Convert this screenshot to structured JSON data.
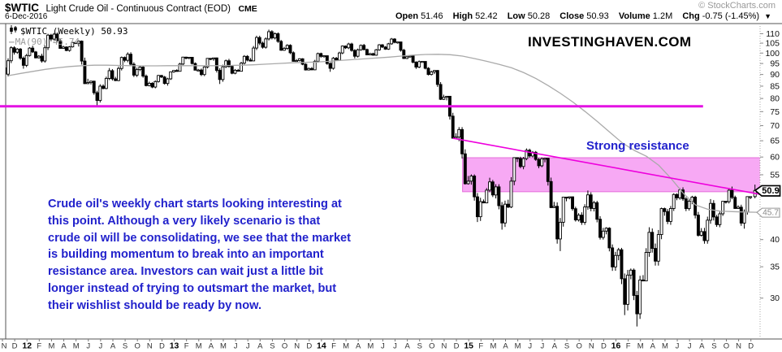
{
  "header": {
    "symbol": "$WTIC",
    "title": "Light Crude Oil - Continuous Contract (EOD)",
    "exchange": "CME",
    "copyright": "© StockCharts.com",
    "date": "6-Dec-2016",
    "quote": {
      "open_label": "Open",
      "open": "51.46",
      "high_label": "High",
      "high": "52.42",
      "low_label": "Low",
      "low": "50.28",
      "close_label": "Close",
      "close": "50.93",
      "volume_label": "Volume",
      "volume": "1.2M",
      "chg_label": "Chg",
      "chg": "-0.75 (-1.45%)",
      "chg_direction_icon": "▼"
    }
  },
  "legend": {
    "main": "$WTIC (Weekly) 50.93",
    "ma_prefix": "—",
    "ma": "MA(90) 45.74",
    "ma_color": "#aaaaaa"
  },
  "watermark": "INVESTINGHAVEN.COM",
  "strong_resistance_label": "Strong resistance",
  "annotation_paragraph": {
    "color": "#2222cc",
    "lines": [
      "Crude oil's weekly chart starts looking interesting at",
      "this point. Although a very likely scenario is that",
      "crude oil will be consolidating, we see that the market",
      "is building momentum to break into an important",
      "resistance area. Investors can wait just a little bit",
      "longer instead of trying to outsmart the market, but",
      "their wishlist should be ready by now."
    ]
  },
  "price_bubbles": {
    "last": {
      "text": "50.9",
      "value": 50.93,
      "style": "black"
    },
    "ma": {
      "text": "45.7",
      "value": 45.74,
      "style": "gray"
    }
  },
  "chart_data": {
    "type": "candlestick",
    "symbol": "$WTIC",
    "period": "Weekly",
    "date_range": "Nov 2011 - Dec 2016",
    "y_scale": "log",
    "ylim": [
      26,
      113
    ],
    "grid": "off",
    "y_ticks": [
      110,
      105,
      100,
      95,
      90,
      85,
      80,
      75,
      70,
      65,
      60,
      55,
      50,
      45,
      40,
      35,
      30
    ],
    "y_tick_hidden_by_bubbles": [
      50,
      45
    ],
    "x_labels": [
      "N",
      "D",
      "12",
      "F",
      "M",
      "A",
      "M",
      "J",
      "J",
      "A",
      "S",
      "O",
      "N",
      "D",
      "13",
      "F",
      "M",
      "A",
      "M",
      "J",
      "J",
      "A",
      "S",
      "O",
      "N",
      "D",
      "14",
      "F",
      "M",
      "A",
      "M",
      "J",
      "J",
      "A",
      "S",
      "O",
      "N",
      "D",
      "15",
      "F",
      "M",
      "A",
      "M",
      "J",
      "J",
      "A",
      "S",
      "O",
      "N",
      "D",
      "16",
      "F",
      "M",
      "A",
      "M",
      "J",
      "J",
      "A",
      "S",
      "O",
      "N",
      "D"
    ],
    "monthly_ohlc": [
      [
        93.0,
        103.4,
        89.2,
        100.4
      ],
      [
        100.4,
        102.5,
        92.6,
        98.8
      ],
      [
        98.8,
        103.7,
        97.4,
        98.5
      ],
      [
        98.5,
        109.9,
        95.4,
        107.1
      ],
      [
        107.1,
        110.6,
        102.1,
        103.0
      ],
      [
        103.0,
        105.5,
        100.7,
        104.9
      ],
      [
        104.9,
        106.4,
        85.9,
        86.5
      ],
      [
        86.5,
        87.3,
        77.3,
        85.0
      ],
      [
        85.0,
        92.9,
        83.7,
        88.1
      ],
      [
        88.1,
        98.3,
        87.1,
        96.5
      ],
      [
        96.5,
        100.4,
        88.9,
        92.2
      ],
      [
        92.2,
        93.7,
        84.9,
        86.2
      ],
      [
        86.2,
        89.8,
        84.1,
        88.9
      ],
      [
        88.9,
        91.0,
        85.2,
        91.8
      ],
      [
        91.8,
        98.2,
        91.3,
        97.5
      ],
      [
        97.5,
        98.1,
        91.9,
        92.0
      ],
      [
        92.0,
        97.5,
        89.3,
        97.2
      ],
      [
        97.2,
        97.8,
        85.9,
        93.5
      ],
      [
        93.5,
        97.2,
        90.1,
        91.9
      ],
      [
        91.9,
        99.0,
        91.3,
        96.6
      ],
      [
        96.6,
        108.9,
        96.1,
        105.0
      ],
      [
        105.0,
        112.2,
        102.2,
        107.7
      ],
      [
        107.7,
        110.7,
        101.1,
        102.3
      ],
      [
        102.3,
        104.4,
        95.9,
        96.4
      ],
      [
        96.4,
        97.5,
        91.8,
        92.7
      ],
      [
        92.7,
        100.2,
        91.9,
        98.4
      ],
      [
        98.4,
        98.8,
        91.2,
        97.5
      ],
      [
        97.5,
        103.8,
        96.3,
        102.6
      ],
      [
        102.6,
        105.2,
        97.4,
        101.6
      ],
      [
        101.6,
        104.6,
        98.9,
        99.7
      ],
      [
        99.7,
        104.5,
        98.7,
        103.0
      ],
      [
        103.0,
        107.7,
        101.6,
        105.4
      ],
      [
        105.4,
        105.7,
        97.1,
        98.2
      ],
      [
        98.2,
        98.7,
        92.5,
        95.9
      ],
      [
        95.9,
        96.0,
        89.6,
        91.2
      ],
      [
        91.2,
        92.0,
        79.4,
        80.5
      ],
      [
        80.5,
        81.0,
        65.7,
        66.2
      ],
      [
        66.2,
        69.5,
        52.4,
        53.3
      ],
      [
        53.3,
        55.1,
        43.6,
        48.2
      ],
      [
        48.2,
        54.2,
        47.8,
        49.8
      ],
      [
        49.8,
        52.5,
        42.0,
        47.6
      ],
      [
        47.6,
        59.9,
        46.7,
        59.6
      ],
      [
        59.6,
        62.6,
        56.5,
        60.3
      ],
      [
        60.3,
        61.8,
        56.8,
        59.5
      ],
      [
        59.5,
        59.7,
        46.7,
        47.1
      ],
      [
        47.1,
        49.3,
        37.8,
        49.2
      ],
      [
        49.2,
        49.4,
        43.7,
        45.1
      ],
      [
        45.1,
        50.9,
        43.0,
        46.6
      ],
      [
        46.6,
        48.4,
        40.0,
        41.7
      ],
      [
        41.7,
        42.5,
        34.3,
        37.0
      ],
      [
        37.0,
        38.4,
        27.6,
        33.6
      ],
      [
        33.6,
        34.7,
        26.1,
        32.8
      ],
      [
        32.8,
        42.5,
        32.6,
        38.3
      ],
      [
        38.3,
        46.8,
        35.2,
        45.9
      ],
      [
        45.9,
        50.2,
        43.0,
        49.1
      ],
      [
        49.1,
        51.7,
        46.0,
        48.3
      ],
      [
        48.3,
        49.6,
        40.6,
        41.6
      ],
      [
        41.6,
        48.8,
        39.2,
        44.7
      ],
      [
        44.7,
        48.3,
        42.5,
        48.2
      ],
      [
        48.2,
        51.9,
        46.5,
        46.9
      ],
      [
        46.9,
        49.4,
        42.2,
        49.4
      ],
      [
        49.4,
        52.4,
        49.0,
        50.93
      ]
    ],
    "ma90": [
      89.5,
      90.5,
      91.4,
      92.3,
      93.0,
      93.6,
      94.0,
      94.2,
      94.2,
      94.1,
      94.0,
      93.9,
      93.9,
      94.0,
      94.0,
      94.0,
      94.0,
      94.0,
      94.1,
      94.2,
      94.4,
      94.7,
      95.0,
      95.3,
      95.5,
      95.7,
      96.0,
      96.4,
      96.8,
      97.2,
      97.6,
      98.0,
      98.5,
      99.0,
      99.3,
      99.4,
      99.2,
      98.5,
      97.3,
      96.0,
      94.6,
      93.0,
      90.8,
      88.2,
      85.2,
      82.0,
      78.6,
      75.0,
      71.4,
      67.8,
      64.4,
      62.0,
      60.2,
      57.6,
      54.0,
      50.2,
      47.4,
      46.4,
      46.0,
      45.9,
      45.8,
      45.74
    ],
    "last_close": 50.93,
    "ma_last": 45.74,
    "overlays": {
      "resistance_hline": {
        "price": 77.0,
        "month_from": -0.2,
        "month_to": 57.1,
        "color": "#e312e3",
        "width": 3
      },
      "resistance_zone": {
        "month_from": 37.5,
        "month_to": 61.72,
        "price_top": 59.8,
        "price_bottom": 50.6,
        "fill": "#f7a9f4",
        "stroke": "#e46edb"
      },
      "falling_trendline": {
        "month_from": 36.72,
        "price_from": 65.8,
        "month_to": 62.4,
        "price_to": 49.6,
        "color": "#ee00dd",
        "width": 1.6
      }
    }
  }
}
